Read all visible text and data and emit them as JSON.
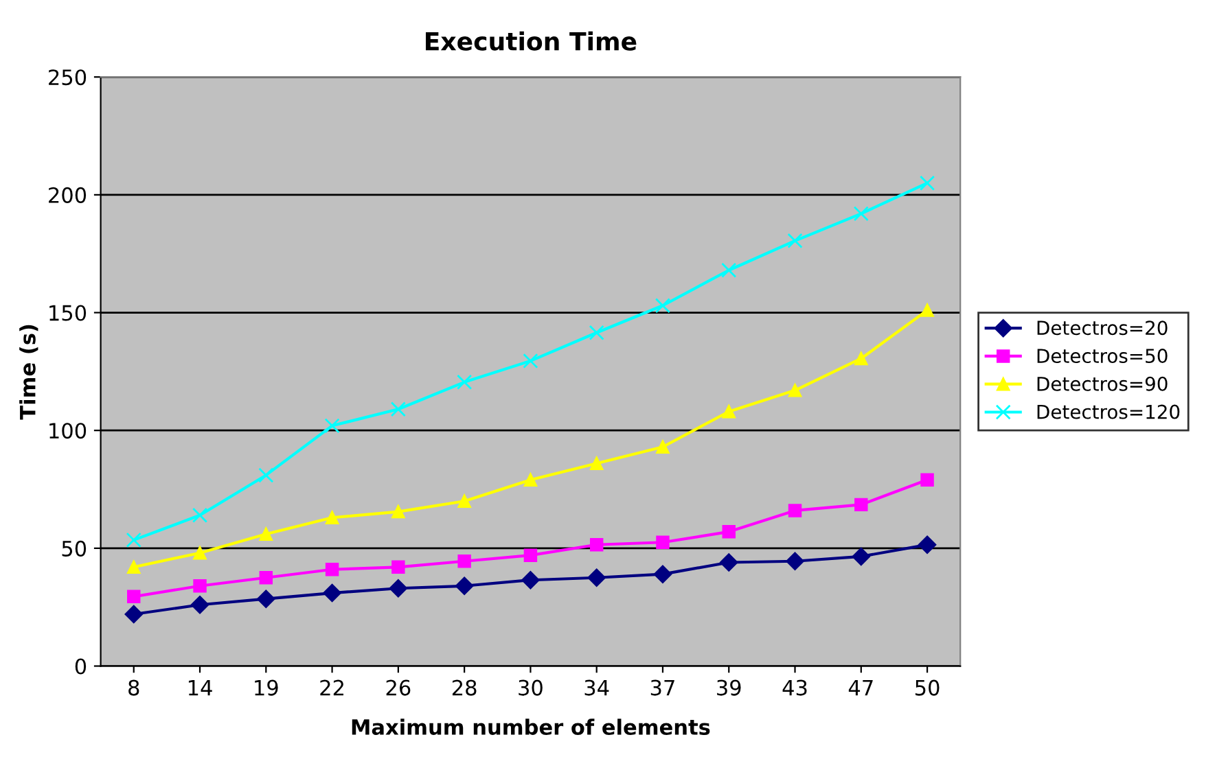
{
  "chart_data": {
    "type": "line",
    "title": "Execution Time",
    "xlabel": "Maximum number of elements",
    "ylabel": "Time (s)",
    "categories": [
      "8",
      "14",
      "19",
      "22",
      "26",
      "28",
      "30",
      "34",
      "37",
      "39",
      "43",
      "47",
      "50"
    ],
    "series": [
      {
        "name": "Detectros=20",
        "color": "#000080",
        "marker": "diamond",
        "values": [
          22,
          26,
          28.5,
          31,
          33,
          34,
          36.5,
          37.5,
          39,
          44,
          44.5,
          46.5,
          51.5
        ]
      },
      {
        "name": "Detectros=50",
        "color": "#ff00ff",
        "marker": "square",
        "values": [
          29.5,
          34,
          37.5,
          41,
          42,
          44.5,
          47,
          51.5,
          52.5,
          57,
          66,
          68.5,
          79
        ]
      },
      {
        "name": "Detectros=90",
        "color": "#ffff00",
        "marker": "triangle",
        "values": [
          42,
          48,
          56,
          63,
          65.5,
          70,
          79,
          86,
          93,
          108,
          117,
          130.5,
          151
        ]
      },
      {
        "name": "Detectros=120",
        "color": "#00ffff",
        "marker": "cross",
        "values": [
          53.5,
          64,
          81,
          102,
          109,
          120.5,
          129.5,
          141.5,
          153,
          168,
          180.5,
          192,
          205
        ]
      }
    ],
    "ylim": [
      0,
      250
    ],
    "yticks": [
      0,
      50,
      100,
      150,
      200,
      250
    ],
    "grid": "y",
    "legend": "right"
  }
}
